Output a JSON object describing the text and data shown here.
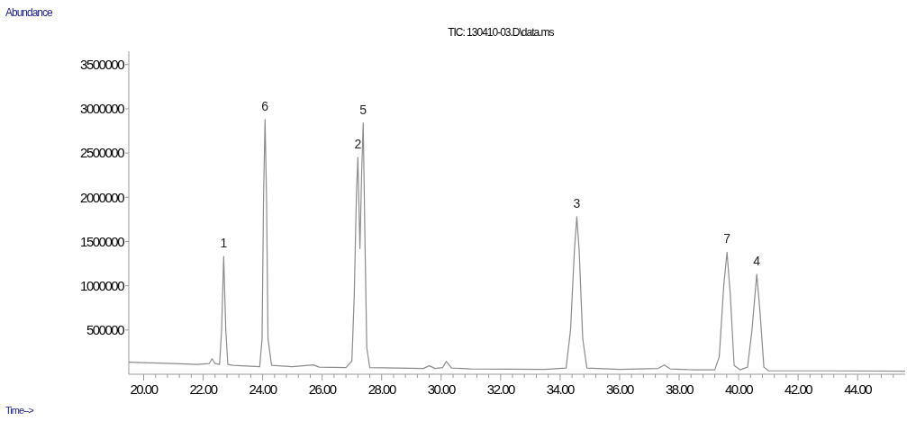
{
  "chart_data": {
    "type": "line",
    "title": "TIC: 130410-03.D\\data.ms",
    "ylabel": "Abundance",
    "xlabel": "Time-->",
    "grid": false,
    "marker": "none",
    "line_style": "solid",
    "xlim": [
      19.5,
      45.6
    ],
    "ylim": [
      0,
      3650000
    ],
    "xticks": [
      {
        "value": 20,
        "label": "20.00"
      },
      {
        "value": 20.4,
        "label": null
      },
      {
        "value": 20.8,
        "label": null
      },
      {
        "value": 21.2,
        "label": null
      },
      {
        "value": 21.6,
        "label": null
      },
      {
        "value": 22,
        "label": "22.00"
      },
      {
        "value": 22.4,
        "label": null
      },
      {
        "value": 22.8,
        "label": null
      },
      {
        "value": 23.2,
        "label": null
      },
      {
        "value": 23.6,
        "label": null
      },
      {
        "value": 24,
        "label": "24.00"
      },
      {
        "value": 24.4,
        "label": null
      },
      {
        "value": 24.8,
        "label": null
      },
      {
        "value": 25.2,
        "label": null
      },
      {
        "value": 25.6,
        "label": null
      },
      {
        "value": 26,
        "label": "26.00"
      },
      {
        "value": 26.4,
        "label": null
      },
      {
        "value": 26.8,
        "label": null
      },
      {
        "value": 27.2,
        "label": null
      },
      {
        "value": 27.6,
        "label": null
      },
      {
        "value": 28,
        "label": "28.00"
      },
      {
        "value": 28.4,
        "label": null
      },
      {
        "value": 28.8,
        "label": null
      },
      {
        "value": 29.2,
        "label": null
      },
      {
        "value": 29.6,
        "label": null
      },
      {
        "value": 30,
        "label": "30.00"
      },
      {
        "value": 30.4,
        "label": null
      },
      {
        "value": 30.8,
        "label": null
      },
      {
        "value": 31.2,
        "label": null
      },
      {
        "value": 31.6,
        "label": null
      },
      {
        "value": 32,
        "label": "32.00"
      },
      {
        "value": 32.4,
        "label": null
      },
      {
        "value": 32.8,
        "label": null
      },
      {
        "value": 33.2,
        "label": null
      },
      {
        "value": 33.6,
        "label": null
      },
      {
        "value": 34,
        "label": "34.00"
      },
      {
        "value": 34.4,
        "label": null
      },
      {
        "value": 34.8,
        "label": null
      },
      {
        "value": 35.2,
        "label": null
      },
      {
        "value": 35.6,
        "label": null
      },
      {
        "value": 36,
        "label": "36.00"
      },
      {
        "value": 36.4,
        "label": null
      },
      {
        "value": 36.8,
        "label": null
      },
      {
        "value": 37.2,
        "label": null
      },
      {
        "value": 37.6,
        "label": null
      },
      {
        "value": 38,
        "label": "38.00"
      },
      {
        "value": 38.4,
        "label": null
      },
      {
        "value": 38.8,
        "label": null
      },
      {
        "value": 39.2,
        "label": null
      },
      {
        "value": 39.6,
        "label": null
      },
      {
        "value": 40,
        "label": "40.00"
      },
      {
        "value": 40.4,
        "label": null
      },
      {
        "value": 40.8,
        "label": null
      },
      {
        "value": 41.2,
        "label": null
      },
      {
        "value": 41.6,
        "label": null
      },
      {
        "value": 42,
        "label": "42.00"
      },
      {
        "value": 42.4,
        "label": null
      },
      {
        "value": 42.8,
        "label": null
      },
      {
        "value": 43.2,
        "label": null
      },
      {
        "value": 43.6,
        "label": null
      },
      {
        "value": 44,
        "label": "44.00"
      },
      {
        "value": 44.4,
        "label": null
      },
      {
        "value": 44.8,
        "label": null
      },
      {
        "value": 45.2,
        "label": null
      }
    ],
    "yticks": [
      500000,
      1000000,
      1500000,
      2000000,
      2500000,
      3000000,
      3500000
    ],
    "series": [
      {
        "color": "#8c8c8c",
        "x": [
          19.5,
          20.0,
          21.0,
          21.8,
          22.2,
          22.3,
          22.4,
          22.55,
          22.62,
          22.69,
          22.76,
          22.83,
          23.0,
          23.9,
          23.98,
          24.03,
          24.08,
          24.13,
          24.18,
          24.3,
          25.0,
          25.7,
          25.9,
          26.8,
          27.0,
          27.08,
          27.15,
          27.2,
          27.27,
          27.33,
          27.38,
          27.44,
          27.5,
          27.6,
          28.5,
          29.4,
          29.6,
          29.8,
          30.05,
          30.17,
          30.35,
          31.0,
          33.5,
          34.2,
          34.35,
          34.48,
          34.56,
          34.64,
          34.76,
          34.9,
          36.0,
          37.3,
          37.5,
          37.7,
          38.5,
          39.2,
          39.35,
          39.5,
          39.61,
          39.72,
          39.85,
          40.05,
          40.3,
          40.45,
          40.61,
          40.72,
          40.85,
          41.0,
          43.0,
          45.6
        ],
        "values": [
          135000,
          130000,
          120000,
          110000,
          120000,
          175000,
          120000,
          110000,
          500000,
          1330000,
          500000,
          110000,
          100000,
          85000,
          400000,
          2000000,
          2880000,
          2000000,
          400000,
          100000,
          85000,
          105000,
          80000,
          75000,
          150000,
          900000,
          2000000,
          2450000,
          1420000,
          2300000,
          2840000,
          1500000,
          300000,
          75000,
          70000,
          65000,
          95000,
          65000,
          75000,
          145000,
          70000,
          60000,
          55000,
          70000,
          500000,
          1400000,
          1780000,
          1400000,
          400000,
          70000,
          55000,
          65000,
          105000,
          60000,
          50000,
          50000,
          200000,
          1000000,
          1380000,
          900000,
          100000,
          50000,
          80000,
          500000,
          1130000,
          700000,
          80000,
          40000,
          38000,
          35000
        ]
      }
    ],
    "annotations": [
      {
        "text": "1",
        "x": 22.69,
        "y": 1330000
      },
      {
        "text": "6",
        "x": 24.08,
        "y": 2880000
      },
      {
        "text": "2",
        "x": 27.2,
        "y": 2450000
      },
      {
        "text": "5",
        "x": 27.38,
        "y": 2840000
      },
      {
        "text": "3",
        "x": 34.56,
        "y": 1780000
      },
      {
        "text": "7",
        "x": 39.61,
        "y": 1380000
      },
      {
        "text": "4",
        "x": 40.61,
        "y": 1130000
      }
    ]
  }
}
